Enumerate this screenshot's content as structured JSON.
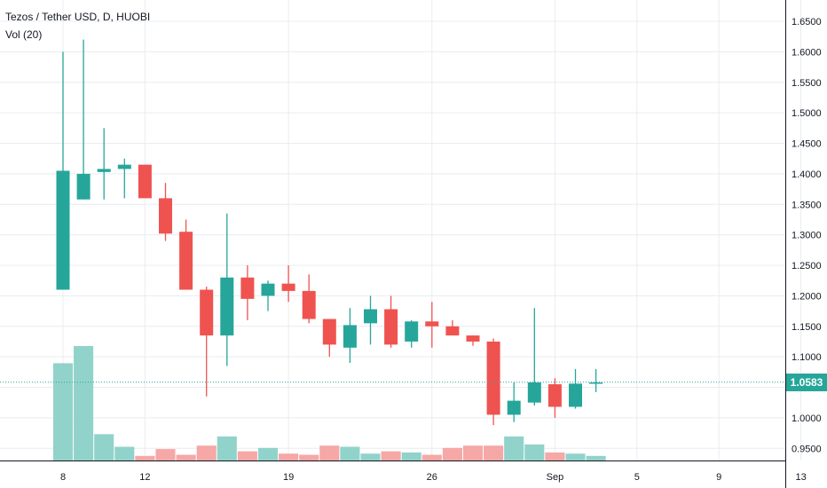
{
  "legend": {
    "title": "Tezos / Tether USD, D, HUOBI",
    "indicator": "Vol (20)"
  },
  "last_price_label": "1.0583",
  "colors": {
    "up": "#26a69a",
    "down": "#ef5350",
    "vol_up": "#91d3cb",
    "vol_down": "#f5a8a6",
    "grid": "#e8ecf1",
    "axis": "#131722"
  },
  "chart_data": {
    "type": "candlestick",
    "title": "Tezos / Tether USD, D, HUOBI",
    "x_tick_labels": [
      "8",
      "12",
      "19",
      "26",
      "Sep",
      "5",
      "9",
      "13"
    ],
    "y_tick_labels": [
      "0.9500",
      "1.0000",
      "1.0500",
      "1.1000",
      "1.1500",
      "1.2000",
      "1.2500",
      "1.3000",
      "1.3500",
      "1.4000",
      "1.4500",
      "1.5000",
      "1.5500",
      "1.6000",
      "1.6500"
    ],
    "ylim": [
      0.93,
      1.685
    ],
    "last_price": 1.0583,
    "x_axis_start_day": 7,
    "x_axis_end_day": 44,
    "candles": [
      {
        "date": "Aug 8",
        "open": 1.21,
        "high": 1.6,
        "low": 1.21,
        "close": 1.405
      },
      {
        "date": "Aug 9",
        "open": 1.358,
        "high": 1.62,
        "low": 1.358,
        "close": 1.4
      },
      {
        "date": "Aug 10",
        "open": 1.403,
        "high": 1.475,
        "low": 1.358,
        "close": 1.408
      },
      {
        "date": "Aug 11",
        "open": 1.408,
        "high": 1.425,
        "low": 1.36,
        "close": 1.415
      },
      {
        "date": "Aug 12",
        "open": 1.415,
        "high": 1.415,
        "low": 1.36,
        "close": 1.36
      },
      {
        "date": "Aug 13",
        "open": 1.36,
        "high": 1.385,
        "low": 1.29,
        "close": 1.302
      },
      {
        "date": "Aug 14",
        "open": 1.305,
        "high": 1.325,
        "low": 1.21,
        "close": 1.21
      },
      {
        "date": "Aug 15",
        "open": 1.21,
        "high": 1.215,
        "low": 1.035,
        "close": 1.135
      },
      {
        "date": "Aug 16",
        "open": 1.135,
        "high": 1.335,
        "low": 1.085,
        "close": 1.23
      },
      {
        "date": "Aug 17",
        "open": 1.23,
        "high": 1.25,
        "low": 1.16,
        "close": 1.195
      },
      {
        "date": "Aug 18",
        "open": 1.2,
        "high": 1.225,
        "low": 1.175,
        "close": 1.22
      },
      {
        "date": "Aug 19",
        "open": 1.22,
        "high": 1.25,
        "low": 1.19,
        "close": 1.208
      },
      {
        "date": "Aug 20",
        "open": 1.208,
        "high": 1.235,
        "low": 1.155,
        "close": 1.162
      },
      {
        "date": "Aug 21",
        "open": 1.162,
        "high": 1.162,
        "low": 1.1,
        "close": 1.12
      },
      {
        "date": "Aug 22",
        "open": 1.115,
        "high": 1.18,
        "low": 1.09,
        "close": 1.152
      },
      {
        "date": "Aug 23",
        "open": 1.155,
        "high": 1.2,
        "low": 1.12,
        "close": 1.178
      },
      {
        "date": "Aug 24",
        "open": 1.178,
        "high": 1.2,
        "low": 1.115,
        "close": 1.12
      },
      {
        "date": "Aug 25",
        "open": 1.125,
        "high": 1.16,
        "low": 1.115,
        "close": 1.158
      },
      {
        "date": "Aug 26",
        "open": 1.158,
        "high": 1.19,
        "low": 1.115,
        "close": 1.15
      },
      {
        "date": "Aug 27",
        "open": 1.15,
        "high": 1.16,
        "low": 1.135,
        "close": 1.135
      },
      {
        "date": "Aug 28",
        "open": 1.135,
        "high": 1.135,
        "low": 1.118,
        "close": 1.125
      },
      {
        "date": "Aug 29",
        "open": 1.125,
        "high": 1.13,
        "low": 0.988,
        "close": 1.005
      },
      {
        "date": "Aug 30",
        "open": 1.005,
        "high": 1.058,
        "low": 0.993,
        "close": 1.028
      },
      {
        "date": "Aug 31",
        "open": 1.025,
        "high": 1.18,
        "low": 1.02,
        "close": 1.058
      },
      {
        "date": "Sep 1",
        "open": 1.055,
        "high": 1.065,
        "low": 1.0,
        "close": 1.018
      },
      {
        "date": "Sep 2",
        "open": 1.018,
        "high": 1.08,
        "low": 1.015,
        "close": 1.056
      },
      {
        "date": "Sep 3",
        "open": 1.056,
        "high": 1.08,
        "low": 1.042,
        "close": 1.058
      }
    ],
    "volume": {
      "name": "Vol (20)",
      "relative_values": [
        0.85,
        1.0,
        0.23,
        0.12,
        0.04,
        0.1,
        0.05,
        0.13,
        0.21,
        0.08,
        0.11,
        0.06,
        0.05,
        0.13,
        0.12,
        0.06,
        0.08,
        0.07,
        0.05,
        0.11,
        0.13,
        0.13,
        0.21,
        0.14,
        0.07,
        0.06,
        0.04
      ]
    }
  }
}
